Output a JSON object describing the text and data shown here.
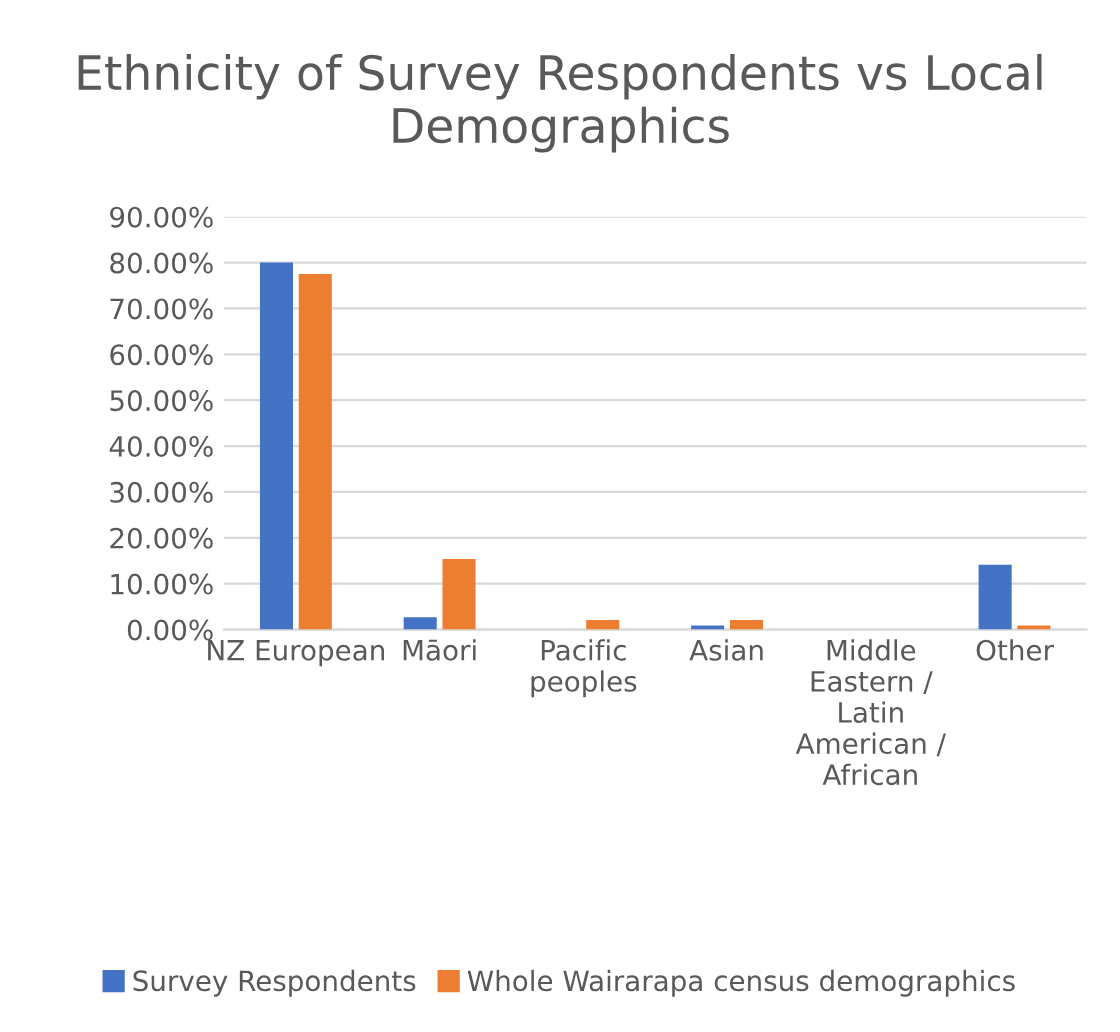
{
  "chart_data": {
    "type": "bar",
    "title": "Ethnicity of Survey Respondents vs Local Demographics",
    "categories": [
      "NZ European",
      "Māori",
      "Pacific peoples",
      "Asian",
      "Middle Eastern / Latin American / African",
      "Other"
    ],
    "series": [
      {
        "name": "Survey Respondents",
        "color": "#4472c4",
        "values": [
          80.0,
          2.7,
          0,
          0.9,
          0,
          14.1
        ]
      },
      {
        "name": "Whole Wairarapa census demographics",
        "color": "#ed7d31",
        "values": [
          77.5,
          15.4,
          2.1,
          2.1,
          0,
          0.9
        ]
      }
    ],
    "ylim": [
      0,
      90
    ],
    "yticks": [
      {
        "value": 0,
        "label": "0.00%"
      },
      {
        "value": 10,
        "label": "10.00%"
      },
      {
        "value": 20,
        "label": "20.00%"
      },
      {
        "value": 30,
        "label": "30.00%"
      },
      {
        "value": 40,
        "label": "40.00%"
      },
      {
        "value": 50,
        "label": "50.00%"
      },
      {
        "value": 60,
        "label": "60.00%"
      },
      {
        "value": 70,
        "label": "70.00%"
      },
      {
        "value": 80,
        "label": "80.00%"
      },
      {
        "value": 90,
        "label": "90.00%"
      }
    ],
    "grid": "y",
    "legend": "bottom"
  }
}
